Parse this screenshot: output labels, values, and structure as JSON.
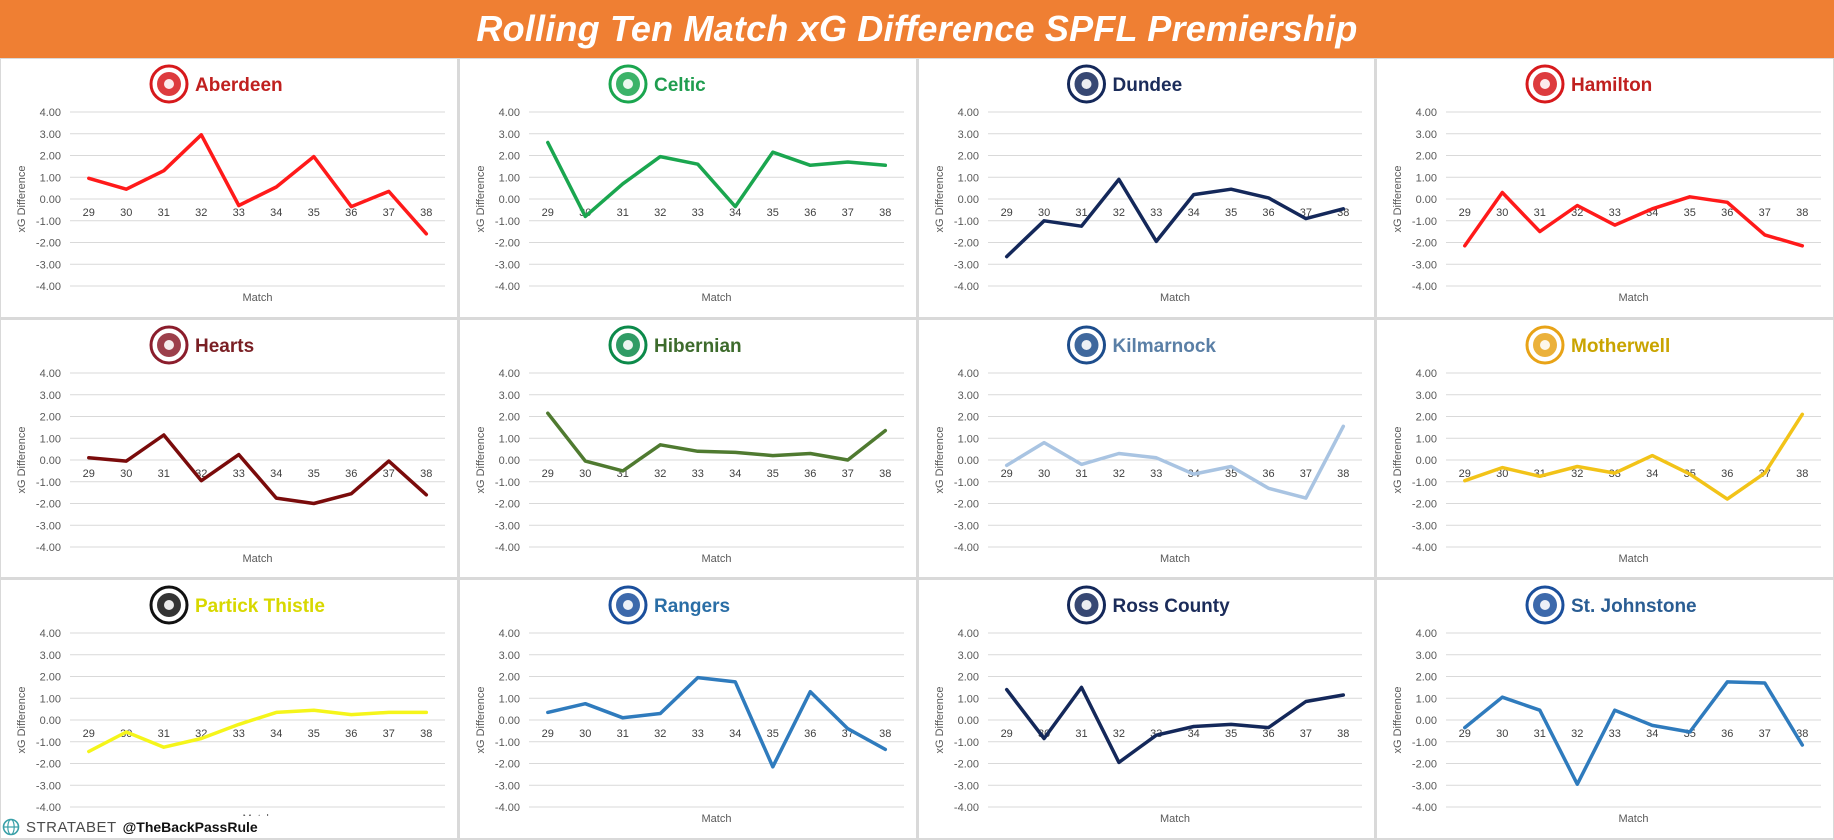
{
  "title": "Rolling Ten Match xG Difference SPFL Premiership",
  "footer": {
    "brand": "STRATABET",
    "handle": "@TheBackPassRule"
  },
  "chart_data": [
    {
      "type": "line",
      "team": "Aberdeen",
      "name_color": "#c0201f",
      "line_color": "#ff1a1a",
      "crest": "aberdeen-crest",
      "crest_color": "#d7191c",
      "x": [
        29,
        30,
        31,
        32,
        33,
        34,
        35,
        36,
        37,
        38
      ],
      "values": [
        0.95,
        0.45,
        1.3,
        2.95,
        -0.3,
        0.55,
        1.95,
        -0.35,
        0.35,
        -1.6
      ],
      "ylabel": "xG Difference",
      "xlabel": "Match",
      "ylim": [
        -4,
        4
      ],
      "yticks": [
        "4.00",
        "3.00",
        "2.00",
        "1.00",
        "0.00",
        "-1.00",
        "-2.00",
        "-3.00",
        "-4.00"
      ]
    },
    {
      "type": "line",
      "team": "Celtic",
      "name_color": "#1f9d4f",
      "line_color": "#1aa64f",
      "crest": "celtic-crest",
      "crest_color": "#1aa64f",
      "x": [
        29,
        30,
        31,
        32,
        33,
        34,
        35,
        36,
        37,
        38
      ],
      "values": [
        2.6,
        -0.8,
        0.7,
        1.95,
        1.6,
        -0.35,
        2.15,
        1.55,
        1.7,
        1.55
      ],
      "ylabel": "xG Difference",
      "xlabel": "Match",
      "ylim": [
        -4,
        4
      ],
      "yticks": [
        "4.00",
        "3.00",
        "2.00",
        "1.00",
        "0.00",
        "-1.00",
        "-2.00",
        "-3.00",
        "-4.00"
      ]
    },
    {
      "type": "line",
      "team": "Dundee",
      "name_color": "#1b2c5a",
      "line_color": "#14285a",
      "crest": "dundee-crest",
      "crest_color": "#14285a",
      "x": [
        29,
        30,
        31,
        32,
        33,
        34,
        35,
        36,
        37,
        38
      ],
      "values": [
        -2.65,
        -1.0,
        -1.25,
        0.9,
        -1.95,
        0.2,
        0.45,
        0.05,
        -0.9,
        -0.45
      ],
      "ylabel": "xG Difference",
      "xlabel": "Match",
      "ylim": [
        -4,
        4
      ],
      "yticks": [
        "4.00",
        "3.00",
        "2.00",
        "1.00",
        "0.00",
        "-1.00",
        "-2.00",
        "-3.00",
        "-4.00"
      ]
    },
    {
      "type": "line",
      "team": "Hamilton",
      "name_color": "#c0201f",
      "line_color": "#ff1a1a",
      "crest": "hamilton-crest",
      "crest_color": "#d7191c",
      "x": [
        29,
        30,
        31,
        32,
        33,
        34,
        35,
        36,
        37,
        38
      ],
      "values": [
        -2.15,
        0.3,
        -1.5,
        -0.3,
        -1.2,
        -0.45,
        0.1,
        -0.15,
        -1.65,
        -2.15
      ],
      "ylabel": "xG Difference",
      "xlabel": "Match",
      "ylim": [
        -4,
        4
      ],
      "yticks": [
        "4.00",
        "3.00",
        "2.00",
        "1.00",
        "0.00",
        "-1.00",
        "-2.00",
        "-3.00",
        "-4.00"
      ]
    },
    {
      "type": "line",
      "team": "Hearts",
      "name_color": "#7a1f24",
      "line_color": "#7a0b0b",
      "crest": "hearts-crest",
      "crest_color": "#8b1d2c",
      "x": [
        29,
        30,
        31,
        32,
        33,
        34,
        35,
        36,
        37,
        38
      ],
      "values": [
        0.1,
        -0.05,
        1.15,
        -0.95,
        0.25,
        -1.75,
        -2.0,
        -1.55,
        -0.05,
        -1.6
      ],
      "ylabel": "xG Difference",
      "xlabel": "Match",
      "ylim": [
        -4,
        4
      ],
      "yticks": [
        "4.00",
        "3.00",
        "2.00",
        "1.00",
        "0.00",
        "-1.00",
        "-2.00",
        "-3.00",
        "-4.00"
      ]
    },
    {
      "type": "line",
      "team": "Hibernian",
      "name_color": "#3d6b2c",
      "line_color": "#4f7a30",
      "crest": "hibernian-crest",
      "crest_color": "#0c8a4a",
      "x": [
        29,
        30,
        31,
        32,
        33,
        34,
        35,
        36,
        37,
        38
      ],
      "values": [
        2.15,
        -0.05,
        -0.5,
        0.7,
        0.4,
        0.35,
        0.2,
        0.3,
        0.0,
        1.35
      ],
      "ylabel": "xG Difference",
      "xlabel": "Match",
      "ylim": [
        -4,
        4
      ],
      "yticks": [
        "4.00",
        "3.00",
        "2.00",
        "1.00",
        "0.00",
        "-1.00",
        "-2.00",
        "-3.00",
        "-4.00"
      ]
    },
    {
      "type": "line",
      "team": "Kilmarnock",
      "name_color": "#5a7fa6",
      "line_color": "#a9c4e2",
      "crest": "kilmarnock-crest",
      "crest_color": "#1d4d8c",
      "x": [
        29,
        30,
        31,
        32,
        33,
        34,
        35,
        36,
        37,
        38
      ],
      "values": [
        -0.25,
        0.8,
        -0.2,
        0.3,
        0.1,
        -0.65,
        -0.3,
        -1.3,
        -1.75,
        1.55
      ],
      "ylabel": "xG Difference",
      "xlabel": "Match",
      "ylim": [
        -4,
        4
      ],
      "yticks": [
        "4.00",
        "3.00",
        "2.00",
        "1.00",
        "0.00",
        "-1.00",
        "-2.00",
        "-3.00",
        "-4.00"
      ]
    },
    {
      "type": "line",
      "team": "Motherwell",
      "name_color": "#c9a400",
      "line_color": "#f2c318",
      "crest": "motherwell-crest",
      "crest_color": "#e8a317",
      "x": [
        29,
        30,
        31,
        32,
        33,
        34,
        35,
        36,
        37,
        38
      ],
      "values": [
        -0.95,
        -0.35,
        -0.75,
        -0.3,
        -0.6,
        0.2,
        -0.65,
        -1.8,
        -0.6,
        2.1
      ],
      "ylabel": "xG Difference",
      "xlabel": "Match",
      "ylim": [
        -4,
        4
      ],
      "yticks": [
        "4.00",
        "3.00",
        "2.00",
        "1.00",
        "0.00",
        "-1.00",
        "-2.00",
        "-3.00",
        "-4.00"
      ]
    },
    {
      "type": "line",
      "team": "Partick Thistle",
      "name_color": "#d8d800",
      "line_color": "#f5f51a",
      "crest": "partick-thistle-crest",
      "crest_color": "#111111",
      "x": [
        29,
        30,
        31,
        32,
        33,
        34,
        35,
        36,
        37,
        38
      ],
      "values": [
        -1.45,
        -0.55,
        -1.25,
        -0.85,
        -0.2,
        0.35,
        0.45,
        0.25,
        0.35,
        0.35
      ],
      "ylabel": "xG Difference",
      "xlabel": "Match",
      "ylim": [
        -4,
        4
      ],
      "yticks": [
        "4.00",
        "3.00",
        "2.00",
        "1.00",
        "0.00",
        "-1.00",
        "-2.00",
        "-3.00",
        "-4.00"
      ]
    },
    {
      "type": "line",
      "team": "Rangers",
      "name_color": "#2a6ea6",
      "line_color": "#2f7bbd",
      "crest": "rangers-crest",
      "crest_color": "#1b4f9c",
      "x": [
        29,
        30,
        31,
        32,
        33,
        34,
        35,
        36,
        37,
        38
      ],
      "values": [
        0.35,
        0.75,
        0.1,
        0.3,
        1.95,
        1.75,
        -2.15,
        1.3,
        -0.4,
        -1.35
      ],
      "ylabel": "xG Difference",
      "xlabel": "Match",
      "ylim": [
        -4,
        4
      ],
      "yticks": [
        "4.00",
        "3.00",
        "2.00",
        "1.00",
        "0.00",
        "-1.00",
        "-2.00",
        "-3.00",
        "-4.00"
      ]
    },
    {
      "type": "line",
      "team": "Ross County",
      "name_color": "#1b2c5a",
      "line_color": "#14285a",
      "crest": "ross-county-crest",
      "crest_color": "#14285a",
      "x": [
        29,
        30,
        31,
        32,
        33,
        34,
        35,
        36,
        37,
        38
      ],
      "values": [
        1.4,
        -0.85,
        1.5,
        -1.95,
        -0.7,
        -0.3,
        -0.2,
        -0.35,
        0.85,
        1.15
      ],
      "ylabel": "xG Difference",
      "xlabel": "Match",
      "ylim": [
        -4,
        4
      ],
      "yticks": [
        "4.00",
        "3.00",
        "2.00",
        "1.00",
        "0.00",
        "-1.00",
        "-2.00",
        "-3.00",
        "-4.00"
      ]
    },
    {
      "type": "line",
      "team": "St. Johnstone",
      "name_color": "#2a5d93",
      "line_color": "#2f7bbd",
      "crest": "st-johnstone-crest",
      "crest_color": "#1b4f9c",
      "x": [
        29,
        30,
        31,
        32,
        33,
        34,
        35,
        36,
        37,
        38
      ],
      "values": [
        -0.35,
        1.05,
        0.45,
        -2.95,
        0.45,
        -0.25,
        -0.55,
        1.75,
        1.7,
        -1.15
      ],
      "ylabel": "xG Difference",
      "xlabel": "Match",
      "ylim": [
        -4,
        4
      ],
      "yticks": [
        "4.00",
        "3.00",
        "2.00",
        "1.00",
        "0.00",
        "-1.00",
        "-2.00",
        "-3.00",
        "-4.00"
      ]
    }
  ]
}
